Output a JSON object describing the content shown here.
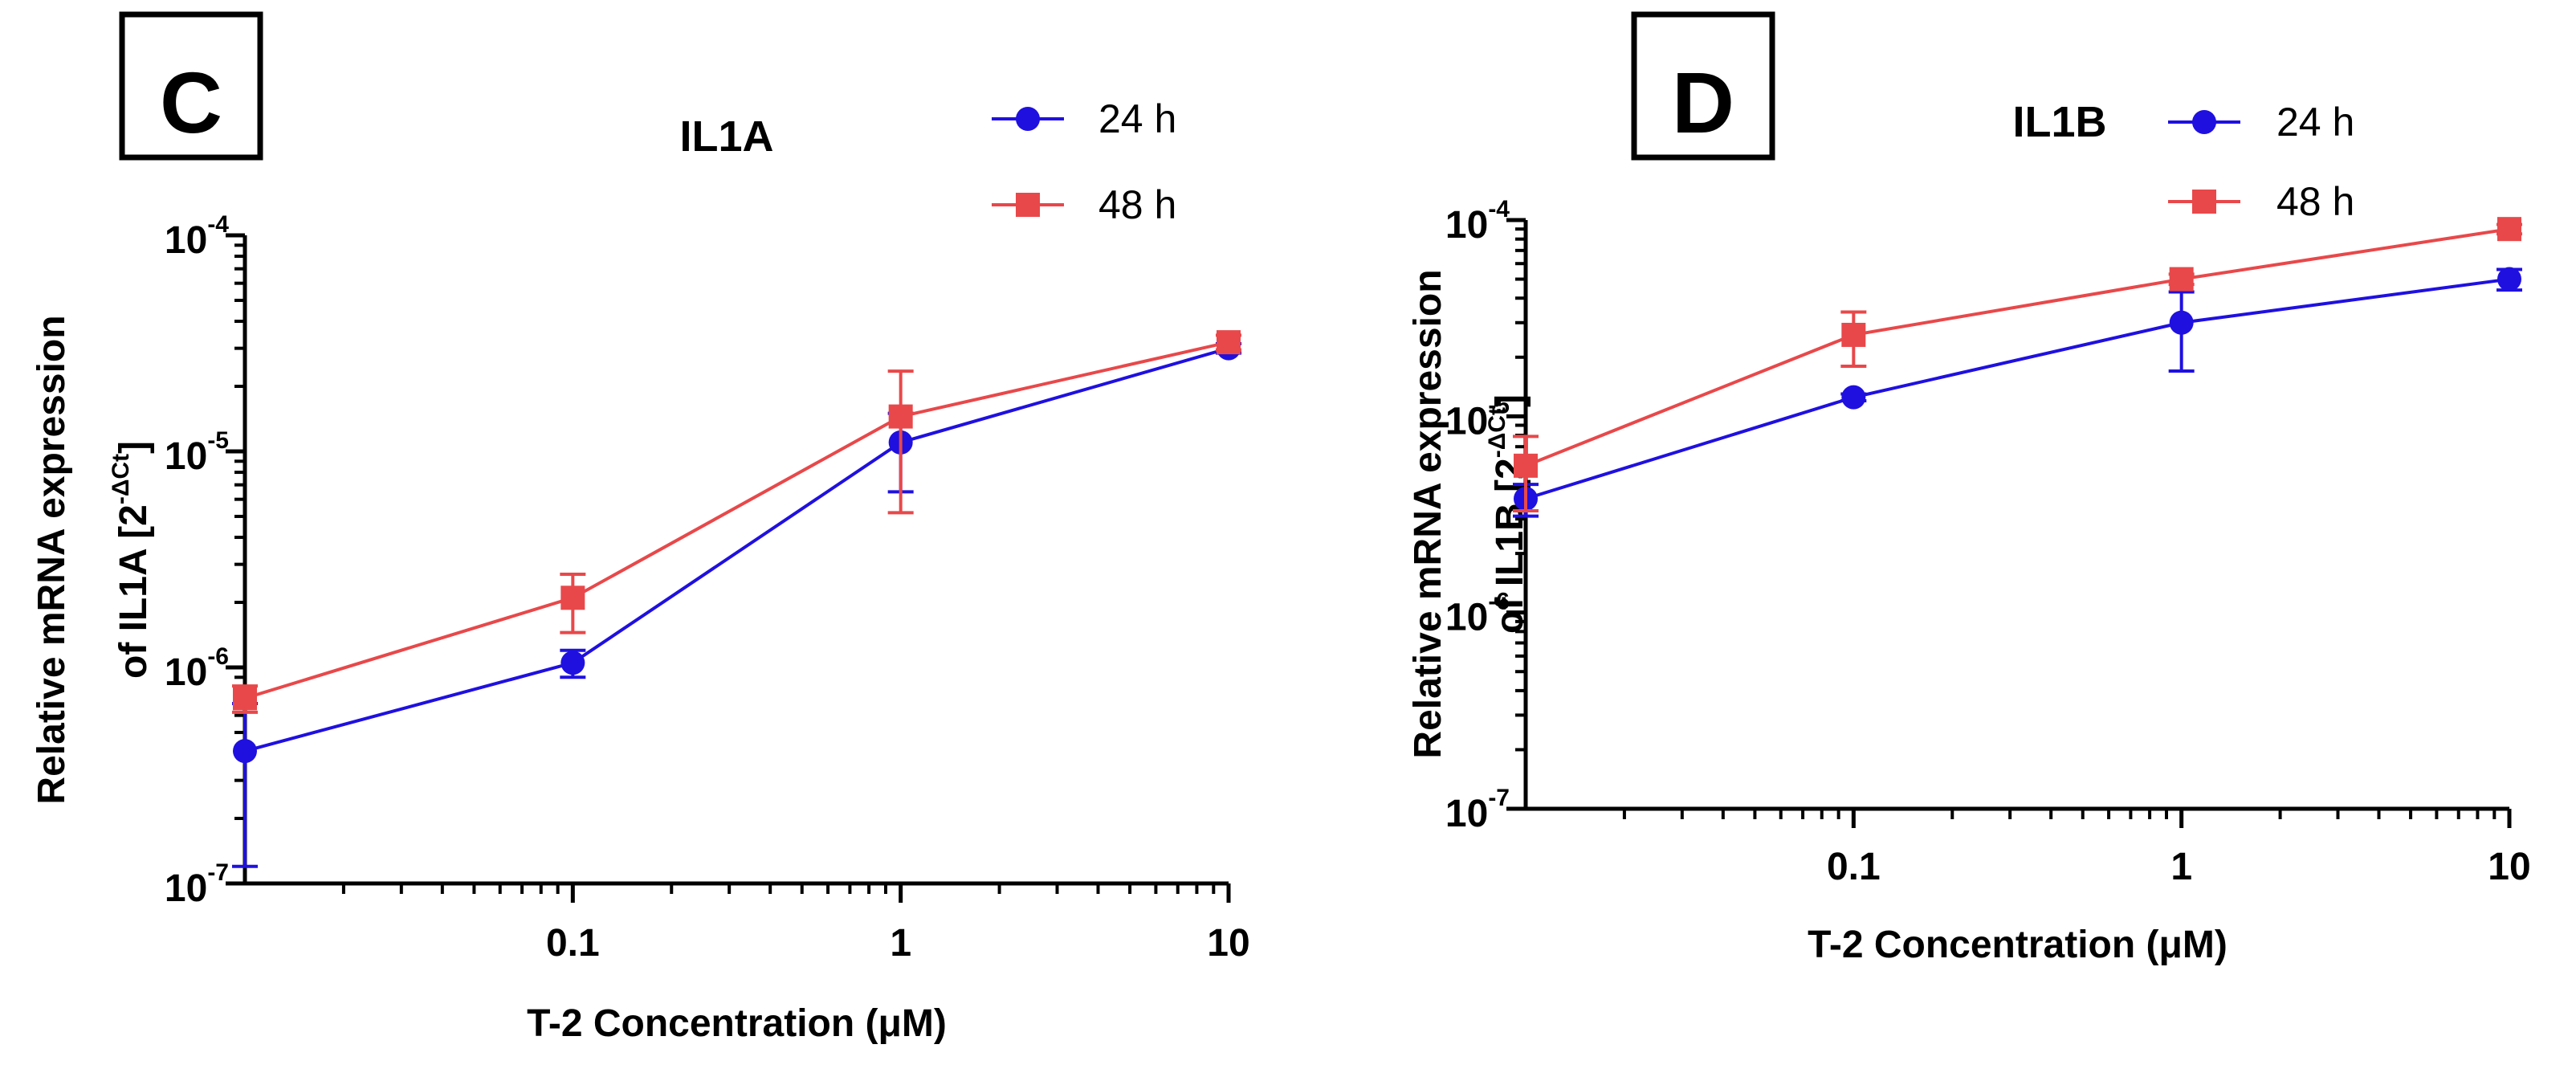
{
  "chart_data": [
    {
      "type": "line",
      "panel_label": "C",
      "title": "IL1A",
      "xlabel": "T-2 Concentration (μM)",
      "ylabel": {
        "line1": "Relative mRNA expression",
        "line2_prefix": "of IL1A [2",
        "line2_exp": "-ΔCt",
        "line2_suffix": "]"
      },
      "x_scale": "log",
      "y_scale": "log",
      "xlim": [
        0.01,
        10
      ],
      "ylim": [
        1e-07,
        0.0001
      ],
      "x_tick_labels": [
        {
          "value": 0.1,
          "label": "0.1"
        },
        {
          "value": 1,
          "label": "1"
        },
        {
          "value": 10,
          "label": "10"
        }
      ],
      "y_tick_labels": [
        {
          "value": 0.0001,
          "base": "10",
          "exp": "-4"
        },
        {
          "value": 1e-05,
          "base": "10",
          "exp": "-5"
        },
        {
          "value": 1e-06,
          "base": "10",
          "exp": "-6"
        },
        {
          "value": 1e-07,
          "base": "10",
          "exp": "-7"
        }
      ],
      "legend_position": "top-right",
      "series": [
        {
          "name": "24 h",
          "color": "#1f10e0",
          "marker": "circle",
          "points": [
            {
              "x": 0.01,
              "y": 4.1e-07,
              "lo": 1.2e-07,
              "hi": 6.8e-07
            },
            {
              "x": 0.1,
              "y": 1.05e-06,
              "lo": 9e-07,
              "hi": 1.2e-06
            },
            {
              "x": 1,
              "y": 1.1e-05,
              "lo": 6.5e-06,
              "hi": 1.5e-05
            },
            {
              "x": 10,
              "y": 3e-05,
              "lo": 2.85e-05,
              "hi": 3.15e-05
            }
          ]
        },
        {
          "name": "48 h",
          "color": "#e8484a",
          "marker": "square",
          "points": [
            {
              "x": 0.01,
              "y": 7.2e-07,
              "lo": 6.2e-07,
              "hi": 8.2e-07
            },
            {
              "x": 0.1,
              "y": 2.1e-06,
              "lo": 1.45e-06,
              "hi": 2.7e-06
            },
            {
              "x": 1,
              "y": 1.45e-05,
              "lo": 5.2e-06,
              "hi": 2.35e-05
            },
            {
              "x": 10,
              "y": 3.2e-05,
              "lo": 2.95e-05,
              "hi": 3.45e-05
            }
          ]
        }
      ]
    },
    {
      "type": "line",
      "panel_label": "D",
      "title": "IL1B",
      "xlabel": "T-2 Concentration (μM)",
      "ylabel": {
        "line1": "Relative mRNA expression",
        "line2_prefix": "of IL1B [2",
        "line2_exp": "-ΔCt",
        "line2_suffix": "]"
      },
      "x_scale": "log",
      "y_scale": "log",
      "xlim": [
        0.01,
        10
      ],
      "ylim": [
        1e-07,
        0.0001
      ],
      "x_tick_labels": [
        {
          "value": 0.1,
          "label": "0.1"
        },
        {
          "value": 1,
          "label": "1"
        },
        {
          "value": 10,
          "label": "10"
        }
      ],
      "y_tick_labels": [
        {
          "value": 0.0001,
          "base": "10",
          "exp": "-4"
        },
        {
          "value": 1e-05,
          "base": "10",
          "exp": "-5"
        },
        {
          "value": 1e-06,
          "base": "10",
          "exp": "-6"
        },
        {
          "value": 1e-07,
          "base": "10",
          "exp": "-7"
        }
      ],
      "legend_position": "top-right",
      "series": [
        {
          "name": "24 h",
          "color": "#1f10e0",
          "marker": "circle",
          "points": [
            {
              "x": 0.01,
              "y": 3.8e-06,
              "lo": 3.1e-06,
              "hi": 4.5e-06
            },
            {
              "x": 0.1,
              "y": 1.25e-05,
              "lo": 1.2e-05,
              "hi": 1.3e-05
            },
            {
              "x": 1,
              "y": 3e-05,
              "lo": 1.7e-05,
              "hi": 4.3e-05
            },
            {
              "x": 10,
              "y": 5e-05,
              "lo": 4.4e-05,
              "hi": 5.6e-05
            }
          ]
        },
        {
          "name": "48 h",
          "color": "#e8484a",
          "marker": "square",
          "points": [
            {
              "x": 0.01,
              "y": 5.6e-06,
              "lo": 3.3e-06,
              "hi": 7.9e-06
            },
            {
              "x": 0.1,
              "y": 2.6e-05,
              "lo": 1.8e-05,
              "hi": 3.4e-05
            },
            {
              "x": 1,
              "y": 5e-05,
              "lo": 4.7e-05,
              "hi": 5.3e-05
            },
            {
              "x": 10,
              "y": 9e-05,
              "lo": 8.5e-05,
              "hi": 9.5e-05
            }
          ]
        }
      ]
    }
  ]
}
